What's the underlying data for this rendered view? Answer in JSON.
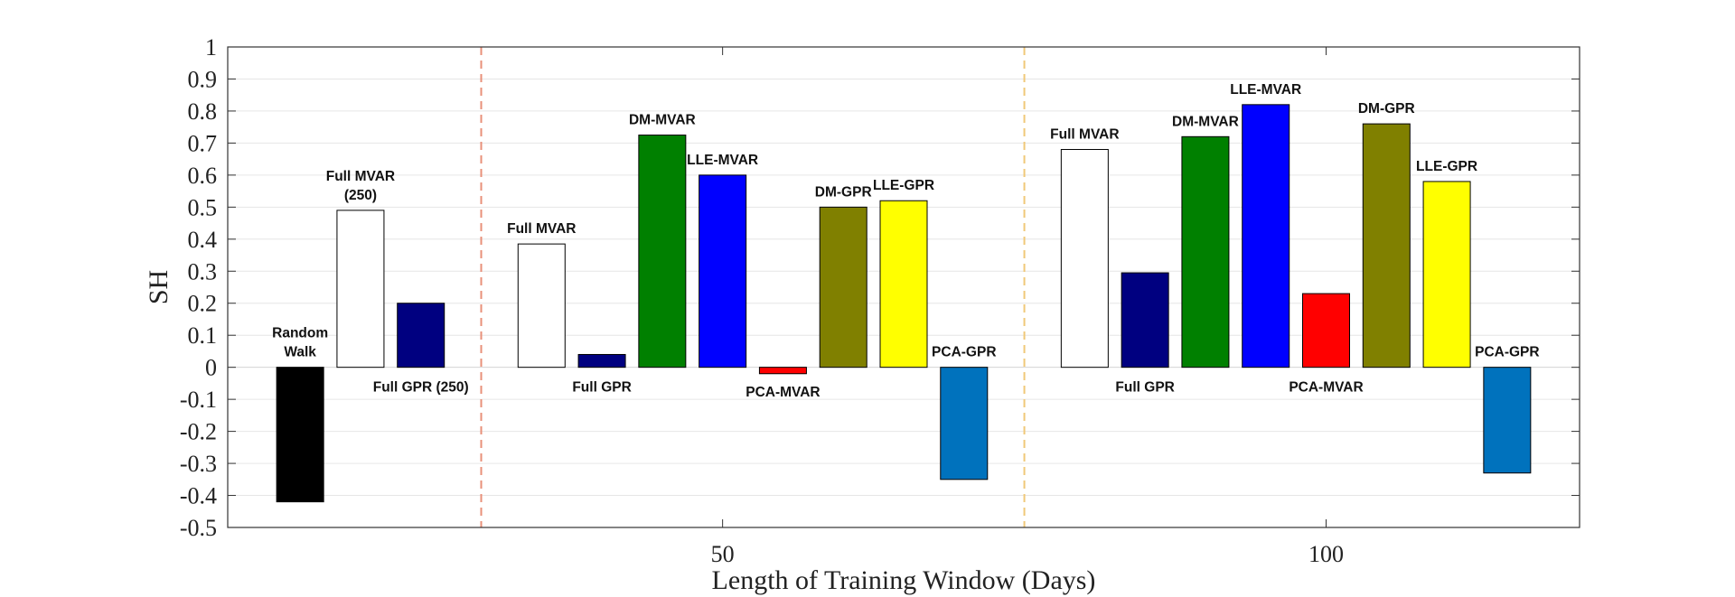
{
  "chart_data": {
    "type": "bar",
    "title": "",
    "xlabel": "Length of Training Window (Days)",
    "ylabel": "SH",
    "ylim": [
      -0.5,
      1
    ],
    "yticks": [
      -0.5,
      -0.4,
      -0.3,
      -0.2,
      -0.1,
      0,
      0.1,
      0.2,
      0.3,
      0.4,
      0.5,
      0.6,
      0.7,
      0.8,
      0.9,
      1
    ],
    "ytick_labels": [
      "-0.5",
      "-0.4",
      "-0.3",
      "-0.2",
      "-0.1",
      "0",
      "0.1",
      "0.2",
      "0.3",
      "0.4",
      "0.5",
      "0.6",
      "0.7",
      "0.8",
      "0.9",
      "1"
    ],
    "xlim": [
      9,
      121
    ],
    "xticks": [
      50,
      100
    ],
    "xtick_labels": [
      "50",
      "100"
    ],
    "grid": "horizontal",
    "group_separators": [
      {
        "x": 30,
        "color": "#e8907a"
      },
      {
        "x": 75,
        "color": "#f0c878"
      }
    ],
    "bars": [
      {
        "x": 15,
        "value": -0.42,
        "label": "Random\nWalk",
        "label_side": "above_zero",
        "color": "#000000"
      },
      {
        "x": 20,
        "value": 0.49,
        "label": "Full MVAR\n(250)",
        "label_side": "above",
        "color": "#ffffff"
      },
      {
        "x": 25,
        "value": 0.2,
        "label": "Full GPR (250)",
        "label_side": "below_zero",
        "color": "#000080"
      },
      {
        "x": 35,
        "value": 0.385,
        "label": "Full MVAR",
        "label_side": "above",
        "color": "#ffffff"
      },
      {
        "x": 40,
        "value": 0.04,
        "label": "Full GPR",
        "label_side": "below_zero",
        "color": "#000080"
      },
      {
        "x": 45,
        "value": 0.725,
        "label": "DM-MVAR",
        "label_side": "above",
        "color": "#008000"
      },
      {
        "x": 50,
        "value": 0.6,
        "label": "LLE-MVAR",
        "label_side": "above",
        "color": "#0000ff"
      },
      {
        "x": 55,
        "value": -0.02,
        "label": "PCA-MVAR",
        "label_side": "below_bar",
        "color": "#ff0000"
      },
      {
        "x": 60,
        "value": 0.5,
        "label": "DM-GPR",
        "label_side": "above",
        "color": "#808000"
      },
      {
        "x": 65,
        "value": 0.52,
        "label": "LLE-GPR",
        "label_side": "above",
        "color": "#ffff00"
      },
      {
        "x": 70,
        "value": -0.35,
        "label": "PCA-GPR",
        "label_side": "above_zero",
        "color": "#0072bd"
      },
      {
        "x": 80,
        "value": 0.68,
        "label": "Full MVAR",
        "label_side": "above",
        "color": "#ffffff"
      },
      {
        "x": 85,
        "value": 0.295,
        "label": "Full GPR",
        "label_side": "below_zero",
        "color": "#000080"
      },
      {
        "x": 90,
        "value": 0.72,
        "label": "DM-MVAR",
        "label_side": "above",
        "color": "#008000"
      },
      {
        "x": 95,
        "value": 0.82,
        "label": "LLE-MVAR",
        "label_side": "above",
        "color": "#0000ff"
      },
      {
        "x": 100,
        "value": 0.23,
        "label": "PCA-MVAR",
        "label_side": "below_zero",
        "color": "#ff0000"
      },
      {
        "x": 105,
        "value": 0.76,
        "label": "DM-GPR",
        "label_side": "above",
        "color": "#808000"
      },
      {
        "x": 110,
        "value": 0.58,
        "label": "LLE-GPR",
        "label_side": "above",
        "color": "#ffff00"
      },
      {
        "x": 115,
        "value": -0.33,
        "label": "PCA-GPR",
        "label_side": "above_zero",
        "color": "#0072bd"
      }
    ]
  }
}
